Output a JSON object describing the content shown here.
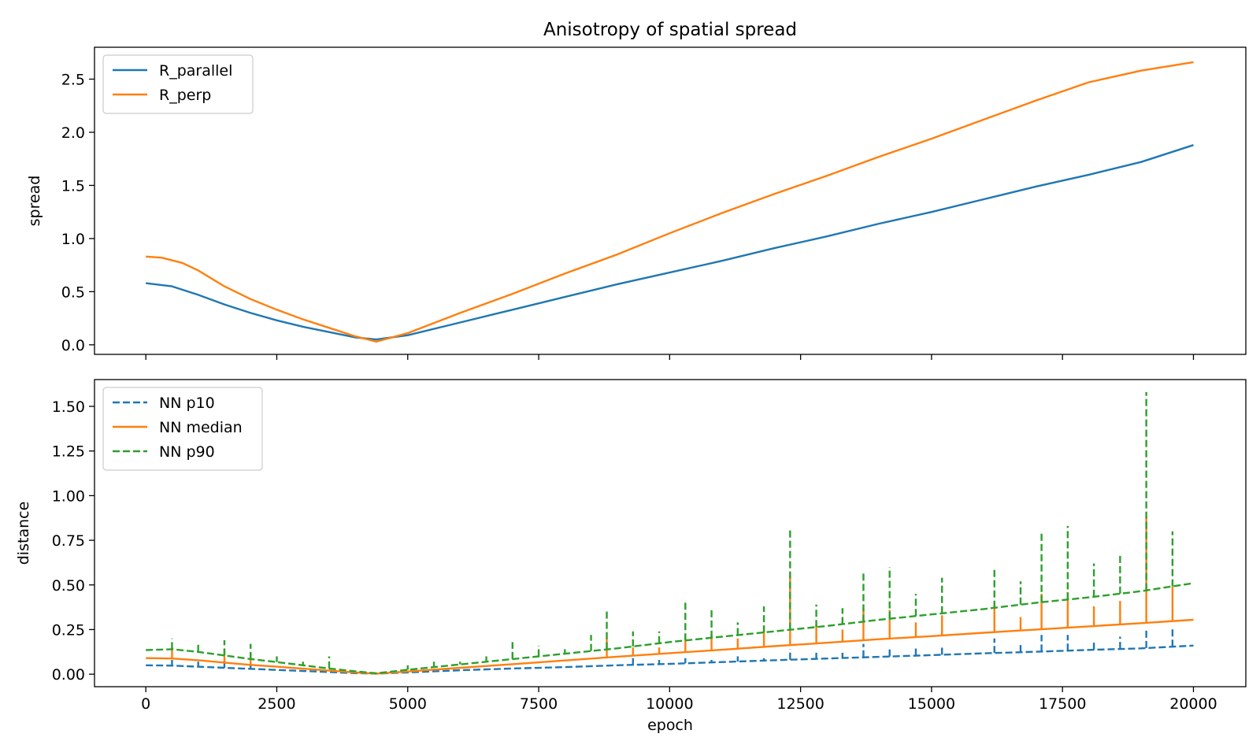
{
  "chart_data": [
    {
      "type": "line",
      "title": "Anisotropy of spatial spread",
      "xlabel": "",
      "ylabel": "spread",
      "xlim": [
        -980,
        21000
      ],
      "ylim": [
        -0.09,
        2.8
      ],
      "xticks": [
        0,
        2500,
        5000,
        7500,
        10000,
        12500,
        15000,
        17500,
        20000
      ],
      "xtick_labels_shown": false,
      "yticks": [
        0.0,
        0.5,
        1.0,
        1.5,
        2.0,
        2.5
      ],
      "ytick_labels": [
        "0.0",
        "0.5",
        "1.0",
        "1.5",
        "2.0",
        "2.5"
      ],
      "grid": false,
      "legend": "top-left",
      "series": [
        {
          "name": "R_parallel",
          "color": "#1f77b4",
          "dash": "solid",
          "x": [
            0,
            500,
            1000,
            1500,
            2000,
            2500,
            3000,
            3500,
            4000,
            4400,
            5000,
            6000,
            7000,
            8000,
            9000,
            10000,
            11000,
            12000,
            13000,
            14000,
            15000,
            16000,
            17000,
            18000,
            19000,
            20000
          ],
          "y": [
            0.58,
            0.55,
            0.47,
            0.38,
            0.3,
            0.23,
            0.17,
            0.12,
            0.07,
            0.05,
            0.09,
            0.21,
            0.33,
            0.45,
            0.57,
            0.68,
            0.79,
            0.91,
            1.02,
            1.14,
            1.25,
            1.37,
            1.49,
            1.6,
            1.72,
            1.88
          ]
        },
        {
          "name": "R_perp",
          "color": "#ff7f0e",
          "dash": "solid",
          "x": [
            0,
            300,
            700,
            1000,
            1500,
            2000,
            2500,
            3000,
            3500,
            4000,
            4400,
            5000,
            6000,
            7000,
            8000,
            9000,
            10000,
            11000,
            12000,
            13000,
            14000,
            15000,
            16000,
            17000,
            18000,
            19000,
            20000
          ],
          "y": [
            0.83,
            0.82,
            0.77,
            0.7,
            0.55,
            0.43,
            0.33,
            0.24,
            0.16,
            0.08,
            0.03,
            0.11,
            0.3,
            0.48,
            0.67,
            0.85,
            1.05,
            1.24,
            1.42,
            1.59,
            1.77,
            1.94,
            2.12,
            2.3,
            2.47,
            2.58,
            2.66
          ]
        }
      ]
    },
    {
      "type": "line",
      "title": "",
      "xlabel": "epoch",
      "ylabel": "distance",
      "xlim": [
        -980,
        21000
      ],
      "ylim": [
        -0.07,
        1.65
      ],
      "xticks": [
        0,
        2500,
        5000,
        7500,
        10000,
        12500,
        15000,
        17500,
        20000
      ],
      "xtick_labels": [
        "0",
        "2500",
        "5000",
        "7500",
        "10000",
        "12500",
        "15000",
        "17500",
        "20000"
      ],
      "yticks": [
        0.0,
        0.25,
        0.5,
        0.75,
        1.0,
        1.25,
        1.5
      ],
      "ytick_labels": [
        "0.00",
        "0.25",
        "0.50",
        "0.75",
        "1.00",
        "1.25",
        "1.50"
      ],
      "grid": false,
      "legend": "top-left",
      "series": [
        {
          "name": "NN p10",
          "color": "#1f77b4",
          "dash": "dashed",
          "x": [
            0,
            500,
            1000,
            1500,
            2000,
            2500,
            3000,
            3500,
            4000,
            4400,
            5000,
            6000,
            7000,
            8000,
            9000,
            10000,
            11000,
            12000,
            13000,
            14000,
            15000,
            16000,
            17000,
            18000,
            19000,
            20000
          ],
          "y": [
            0.05,
            0.048,
            0.042,
            0.036,
            0.03,
            0.024,
            0.018,
            0.012,
            0.006,
            0.003,
            0.01,
            0.022,
            0.032,
            0.04,
            0.05,
            0.058,
            0.068,
            0.078,
            0.088,
            0.097,
            0.107,
            0.117,
            0.126,
            0.136,
            0.145,
            0.16
          ],
          "spikes": [
            [
              500,
              0.08
            ],
            [
              1000,
              0.07
            ],
            [
              1500,
              0.08
            ],
            [
              2000,
              0.06
            ],
            [
              9300,
              0.09
            ],
            [
              9800,
              0.08
            ],
            [
              10300,
              0.09
            ],
            [
              10800,
              0.08
            ],
            [
              11300,
              0.1
            ],
            [
              11800,
              0.09
            ],
            [
              12300,
              0.14
            ],
            [
              12800,
              0.12
            ],
            [
              13300,
              0.12
            ],
            [
              13700,
              0.17
            ],
            [
              14200,
              0.15
            ],
            [
              14700,
              0.16
            ],
            [
              15200,
              0.15
            ],
            [
              16200,
              0.2
            ],
            [
              16700,
              0.17
            ],
            [
              17100,
              0.22
            ],
            [
              17600,
              0.22
            ],
            [
              18100,
              0.19
            ],
            [
              18600,
              0.21
            ],
            [
              19100,
              0.25
            ],
            [
              19600,
              0.26
            ]
          ]
        },
        {
          "name": "NN median",
          "color": "#ff7f0e",
          "dash": "solid",
          "x": [
            0,
            500,
            1000,
            1500,
            2000,
            2500,
            3000,
            3500,
            4000,
            4400,
            5000,
            6000,
            7000,
            8000,
            9000,
            10000,
            11000,
            12000,
            13000,
            14000,
            15000,
            16000,
            17000,
            18000,
            19000,
            20000
          ],
          "y": [
            0.09,
            0.088,
            0.078,
            0.065,
            0.052,
            0.042,
            0.031,
            0.02,
            0.01,
            0.003,
            0.015,
            0.036,
            0.056,
            0.077,
            0.098,
            0.118,
            0.137,
            0.157,
            0.176,
            0.196,
            0.213,
            0.232,
            0.25,
            0.268,
            0.286,
            0.305
          ],
          "spikes": [
            [
              500,
              0.15
            ],
            [
              1500,
              0.14
            ],
            [
              2000,
              0.12
            ],
            [
              8800,
              0.2
            ],
            [
              9300,
              0.15
            ],
            [
              9800,
              0.15
            ],
            [
              10300,
              0.22
            ],
            [
              10800,
              0.22
            ],
            [
              11300,
              0.2
            ],
            [
              11800,
              0.27
            ],
            [
              12300,
              0.55
            ],
            [
              12800,
              0.28
            ],
            [
              13300,
              0.25
            ],
            [
              13700,
              0.37
            ],
            [
              14200,
              0.36
            ],
            [
              14700,
              0.29
            ],
            [
              15200,
              0.33
            ],
            [
              16200,
              0.37
            ],
            [
              16700,
              0.32
            ],
            [
              17100,
              0.45
            ],
            [
              17600,
              0.46
            ],
            [
              18100,
              0.38
            ],
            [
              18600,
              0.41
            ],
            [
              19100,
              0.88
            ],
            [
              19600,
              0.49
            ]
          ]
        },
        {
          "name": "NN p90",
          "color": "#2ca02c",
          "dash": "dashed",
          "x": [
            0,
            500,
            1000,
            1500,
            2000,
            2500,
            3000,
            3500,
            4000,
            4400,
            5000,
            6000,
            7000,
            8000,
            9000,
            10000,
            11000,
            12000,
            13000,
            14000,
            15000,
            16000,
            17000,
            18000,
            19000,
            20000
          ],
          "y": [
            0.135,
            0.14,
            0.125,
            0.105,
            0.085,
            0.068,
            0.05,
            0.032,
            0.016,
            0.005,
            0.025,
            0.055,
            0.085,
            0.115,
            0.145,
            0.18,
            0.21,
            0.24,
            0.27,
            0.305,
            0.335,
            0.365,
            0.4,
            0.43,
            0.465,
            0.51
          ],
          "spikes": [
            [
              500,
              0.2
            ],
            [
              1000,
              0.17
            ],
            [
              1500,
              0.19
            ],
            [
              2000,
              0.17
            ],
            [
              2500,
              0.1
            ],
            [
              3000,
              0.07
            ],
            [
              3500,
              0.1
            ],
            [
              5000,
              0.05
            ],
            [
              5500,
              0.07
            ],
            [
              6000,
              0.07
            ],
            [
              6500,
              0.1
            ],
            [
              7000,
              0.18
            ],
            [
              7500,
              0.16
            ],
            [
              8000,
              0.14
            ],
            [
              8500,
              0.22
            ],
            [
              8800,
              0.36
            ],
            [
              9300,
              0.24
            ],
            [
              9800,
              0.24
            ],
            [
              10300,
              0.4
            ],
            [
              10800,
              0.36
            ],
            [
              11300,
              0.29
            ],
            [
              11800,
              0.38
            ],
            [
              12300,
              0.82
            ],
            [
              12800,
              0.39
            ],
            [
              13300,
              0.37
            ],
            [
              13700,
              0.58
            ],
            [
              14200,
              0.6
            ],
            [
              14700,
              0.45
            ],
            [
              15200,
              0.54
            ],
            [
              16200,
              0.6
            ],
            [
              16700,
              0.52
            ],
            [
              17100,
              0.79
            ],
            [
              17600,
              0.83
            ],
            [
              18100,
              0.62
            ],
            [
              18600,
              0.68
            ],
            [
              19100,
              1.58
            ],
            [
              19600,
              0.8
            ]
          ]
        }
      ]
    }
  ]
}
